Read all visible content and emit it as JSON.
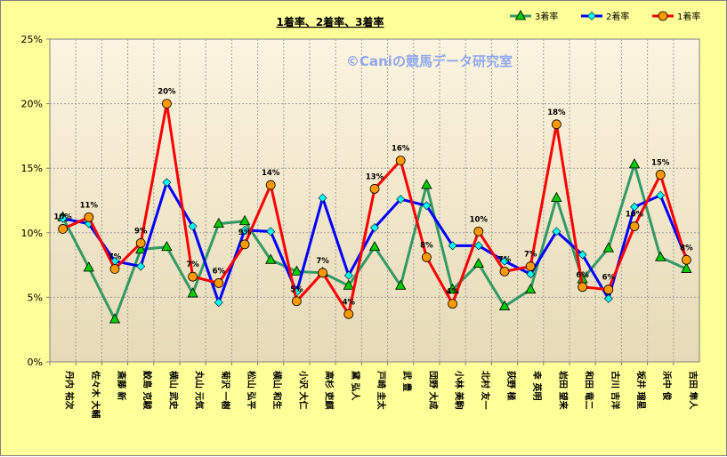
{
  "chart_data": {
    "type": "line",
    "title": "1着率、2着率、3着率",
    "watermark": "©Caniの競馬データ研究室",
    "xlabel": "",
    "ylabel": "",
    "ylim": [
      0,
      25
    ],
    "yticks": [
      "0%",
      "5%",
      "10%",
      "15%",
      "20%",
      "25%"
    ],
    "grid": true,
    "legend_position": "top-right",
    "categories": [
      "丹内 祐次",
      "佐々木 大輔",
      "斎藤 新",
      "鮫島 克駿",
      "横山 武史",
      "丸山 元気",
      "菊沢 一樹",
      "松山 弘平",
      "横山 和生",
      "小沢 大仁",
      "高杉 吏麒",
      "黛 弘人",
      "戸崎 圭太",
      "武 豊",
      "団野 大成",
      "小林 美駒",
      "北村 友一",
      "荻野 極",
      "幸 英明",
      "岩田 望来",
      "和田 竜二",
      "古川 吉洋",
      "坂井 瑠星",
      "浜中 俊",
      "吉田 隼人"
    ],
    "series": [
      {
        "name": "3着率",
        "color": "#339966",
        "marker": "triangle",
        "marker_color": "#00CC00",
        "values": [
          11.2,
          7.3,
          3.3,
          8.7,
          8.9,
          5.3,
          10.7,
          10.9,
          7.9,
          7.0,
          6.9,
          5.9,
          8.9,
          5.9,
          13.7,
          5.6,
          7.6,
          4.3,
          5.6,
          12.7,
          6.4,
          8.8,
          15.3,
          8.1,
          7.2
        ]
      },
      {
        "name": "2着率",
        "color": "#0000FF",
        "marker": "diamond",
        "marker_color": "#00FFFF",
        "values": [
          11.1,
          10.7,
          7.8,
          7.4,
          13.9,
          10.5,
          4.6,
          10.2,
          10.1,
          5.4,
          12.7,
          6.7,
          10.4,
          12.6,
          12.1,
          9.0,
          9.0,
          7.8,
          6.8,
          10.1,
          8.3,
          4.9,
          12.0,
          12.9,
          8.0
        ]
      },
      {
        "name": "1着率",
        "color": "#FF0000",
        "marker": "circle",
        "marker_color": "#FF9900",
        "values": [
          10.3,
          11.2,
          7.2,
          9.2,
          20.0,
          6.6,
          6.1,
          9.1,
          13.7,
          4.7,
          6.9,
          3.7,
          13.4,
          15.6,
          8.1,
          4.5,
          10.1,
          7.0,
          7.4,
          18.4,
          5.8,
          5.6,
          10.5,
          14.5,
          7.9
        ],
        "data_labels": [
          "10%",
          "11%",
          "7%",
          "9%",
          "20%",
          "7%",
          "6%",
          "9%",
          "14%",
          "5%",
          "7%",
          "4%",
          "13%",
          "16%",
          "8%",
          "4%",
          "10%",
          "7%",
          "7%",
          "18%",
          "6%",
          "6%",
          "10%",
          "15%",
          "8%"
        ]
      }
    ]
  }
}
